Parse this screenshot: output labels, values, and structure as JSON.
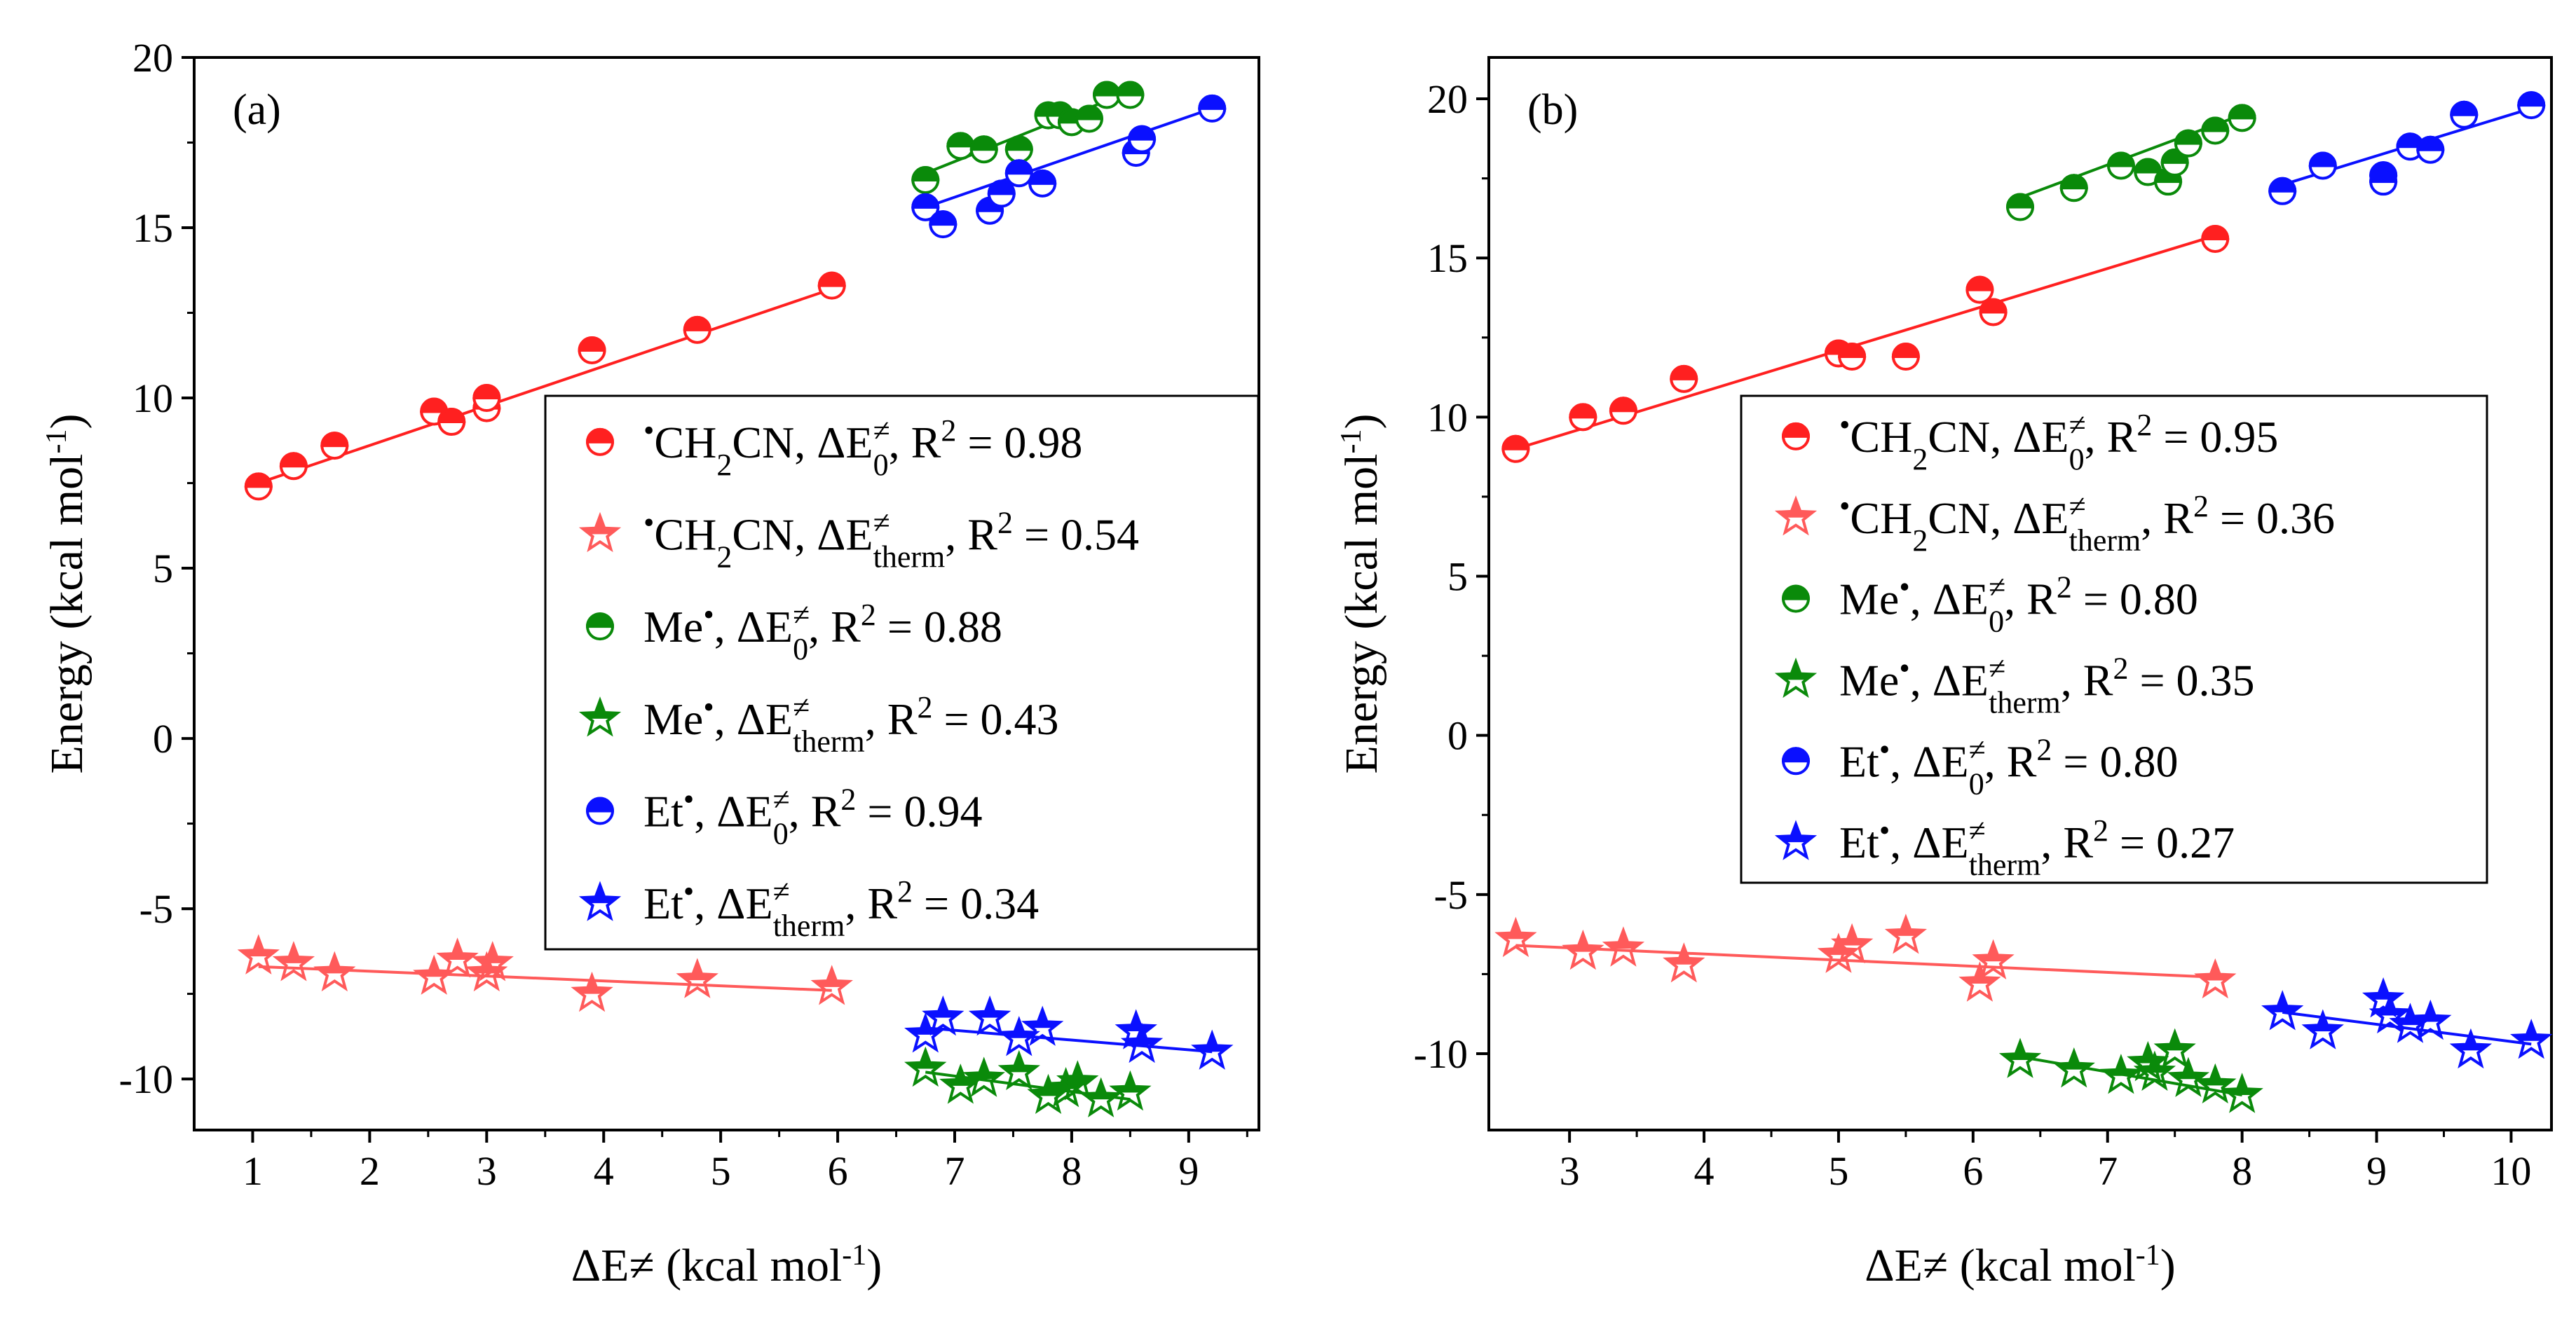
{
  "colors": {
    "red": "#ff2020",
    "red_light": "#ff5a5a",
    "green": "#0a8a0a",
    "blue": "#0a10ff",
    "axis": "#000000"
  },
  "legend_labels": {
    "sym_radical": "•",
    "sym_delta": "ΔE",
    "sym_neq": "≠",
    "sub_zero": "0",
    "sub_therm": "therm",
    "r2": "R",
    "r2_exp": "2",
    "eq": " = "
  },
  "chart_data": [
    {
      "panel": "(a)",
      "type": "scatter",
      "xlabel": "ΔE≠ (kcal mol-1)",
      "ylabel": "Energy (kcal mol-1)",
      "xlim": [
        0.5,
        9.6
      ],
      "ylim": [
        -11.5,
        20
      ],
      "xticks": [
        "1",
        "2",
        "3",
        "4",
        "5",
        "6",
        "7",
        "8",
        "9"
      ],
      "yticks": [
        "-10",
        "-5",
        "0",
        "5",
        "10",
        "15",
        "20"
      ],
      "series": [
        {
          "name": "CH2CN",
          "metric": "0",
          "r2": "0.98",
          "color": "red",
          "marker": "circle",
          "x": [
            1.05,
            1.35,
            1.7,
            2.55,
            2.7,
            3.0,
            3.0,
            3.9,
            4.8,
            5.95
          ],
          "y": [
            7.4,
            8.0,
            8.6,
            9.6,
            9.3,
            9.7,
            10.0,
            11.4,
            12.0,
            13.3
          ],
          "fit": [
            [
              1.05,
              7.5
            ],
            [
              5.95,
              13.2
            ]
          ]
        },
        {
          "name": "CH2CN",
          "metric": "therm",
          "r2": "0.54",
          "color": "red_light",
          "marker": "star",
          "x": [
            1.05,
            1.35,
            1.7,
            2.55,
            2.75,
            3.0,
            3.05,
            3.9,
            4.8,
            5.95
          ],
          "y": [
            -6.4,
            -6.6,
            -6.9,
            -7.0,
            -6.5,
            -6.9,
            -6.6,
            -7.5,
            -7.1,
            -7.3
          ],
          "fit": [
            [
              1.05,
              -6.7
            ],
            [
              5.95,
              -7.4
            ]
          ]
        },
        {
          "name": "Me",
          "metric": "0",
          "r2": "0.88",
          "color": "green",
          "marker": "circle",
          "x": [
            6.75,
            7.05,
            7.25,
            7.55,
            7.8,
            7.9,
            8.0,
            8.15,
            8.3,
            8.5
          ],
          "y": [
            16.4,
            17.4,
            17.3,
            17.3,
            18.3,
            18.3,
            18.1,
            18.2,
            18.9,
            18.9
          ],
          "fit": [
            [
              6.75,
              16.6
            ],
            [
              8.5,
              19.0
            ]
          ]
        },
        {
          "name": "Me",
          "metric": "therm",
          "r2": "0.43",
          "color": "green",
          "marker": "star",
          "x": [
            6.75,
            7.05,
            7.25,
            7.55,
            7.8,
            7.95,
            8.05,
            8.25,
            8.5
          ],
          "y": [
            -9.7,
            -10.2,
            -10.0,
            -9.8,
            -10.5,
            -10.3,
            -10.1,
            -10.6,
            -10.4
          ],
          "fit": [
            [
              6.75,
              -9.8
            ],
            [
              8.5,
              -10.6
            ]
          ]
        },
        {
          "name": "Et",
          "metric": "0",
          "r2": "0.94",
          "color": "blue",
          "marker": "circle",
          "x": [
            6.75,
            6.9,
            7.3,
            7.4,
            7.55,
            7.75,
            8.55,
            8.6,
            9.2
          ],
          "y": [
            15.6,
            15.1,
            15.5,
            16.0,
            16.6,
            16.3,
            17.2,
            17.6,
            18.5
          ],
          "fit": [
            [
              6.75,
              15.6
            ],
            [
              9.2,
              18.5
            ]
          ]
        },
        {
          "name": "Et",
          "metric": "therm",
          "r2": "0.34",
          "color": "blue",
          "marker": "star",
          "x": [
            6.75,
            6.9,
            7.3,
            7.55,
            7.75,
            8.55,
            8.6,
            9.2
          ],
          "y": [
            -8.7,
            -8.2,
            -8.2,
            -8.8,
            -8.5,
            -8.6,
            -9.0,
            -9.2
          ],
          "fit": [
            [
              6.75,
              -8.5
            ],
            [
              9.2,
              -9.2
            ]
          ]
        }
      ]
    },
    {
      "panel": "(b)",
      "type": "scatter",
      "xlabel": "ΔE≠ (kcal mol-1)",
      "ylabel": "Energy (kcal mol-1)",
      "xlim": [
        2.4,
        10.3
      ],
      "ylim": [
        -12.4,
        21.3
      ],
      "xticks": [
        "3",
        "4",
        "5",
        "6",
        "7",
        "8",
        "9",
        "10"
      ],
      "yticks": [
        "-10",
        "-5",
        "0",
        "5",
        "10",
        "15",
        "20"
      ],
      "series": [
        {
          "name": "CH2CN",
          "metric": "0",
          "r2": "0.95",
          "color": "red",
          "marker": "circle",
          "x": [
            2.6,
            3.1,
            3.4,
            3.85,
            5.0,
            5.1,
            5.5,
            6.05,
            6.15,
            7.8
          ],
          "y": [
            9.0,
            10.0,
            10.2,
            11.2,
            12.0,
            11.9,
            11.9,
            14.0,
            13.3,
            15.6
          ],
          "fit": [
            [
              2.6,
              9.0
            ],
            [
              7.8,
              15.7
            ]
          ]
        },
        {
          "name": "CH2CN",
          "metric": "therm",
          "r2": "0.36",
          "color": "red_light",
          "marker": "star",
          "x": [
            2.6,
            3.1,
            3.4,
            3.85,
            5.0,
            5.1,
            5.5,
            6.05,
            6.15,
            7.8
          ],
          "y": [
            -6.4,
            -6.8,
            -6.7,
            -7.2,
            -6.9,
            -6.6,
            -6.3,
            -7.8,
            -7.1,
            -7.7
          ],
          "fit": [
            [
              2.6,
              -6.6
            ],
            [
              7.8,
              -7.6
            ]
          ]
        },
        {
          "name": "Me",
          "metric": "0",
          "r2": "0.80",
          "color": "green",
          "marker": "circle",
          "x": [
            6.35,
            6.75,
            7.1,
            7.3,
            7.45,
            7.5,
            7.6,
            7.8,
            8.0
          ],
          "y": [
            16.6,
            17.2,
            17.9,
            17.7,
            17.4,
            18.0,
            18.6,
            19.0,
            19.4
          ],
          "fit": [
            [
              6.35,
              16.9
            ],
            [
              8.0,
              19.5
            ]
          ]
        },
        {
          "name": "Me",
          "metric": "therm",
          "r2": "0.35",
          "color": "green",
          "marker": "star",
          "x": [
            6.35,
            6.75,
            7.1,
            7.3,
            7.35,
            7.5,
            7.6,
            7.8,
            8.0
          ],
          "y": [
            -10.2,
            -10.5,
            -10.7,
            -10.3,
            -10.6,
            -9.9,
            -10.8,
            -11.0,
            -11.3
          ],
          "fit": [
            [
              6.35,
              -10.1
            ],
            [
              8.0,
              -11.3
            ]
          ]
        },
        {
          "name": "Et",
          "metric": "0",
          "r2": "0.80",
          "color": "blue",
          "marker": "circle",
          "x": [
            8.3,
            8.6,
            9.05,
            9.05,
            9.25,
            9.4,
            9.65,
            10.15
          ],
          "y": [
            17.1,
            17.9,
            17.6,
            17.4,
            18.5,
            18.4,
            19.5,
            19.8
          ],
          "fit": [
            [
              8.3,
              17.3
            ],
            [
              10.15,
              19.7
            ]
          ]
        },
        {
          "name": "Et",
          "metric": "therm",
          "r2": "0.27",
          "color": "blue",
          "marker": "star",
          "x": [
            8.3,
            8.6,
            9.05,
            9.1,
            9.25,
            9.4,
            9.7,
            10.15
          ],
          "y": [
            -8.7,
            -9.3,
            -8.3,
            -8.8,
            -9.1,
            -9.0,
            -9.9,
            -9.6
          ],
          "fit": [
            [
              8.3,
              -8.7
            ],
            [
              10.15,
              -9.7
            ]
          ]
        }
      ]
    }
  ]
}
